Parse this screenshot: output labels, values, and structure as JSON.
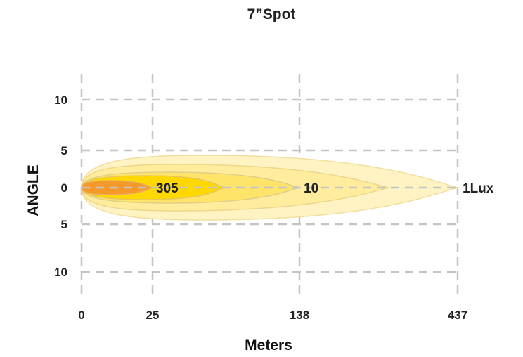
{
  "chart_data": {
    "type": "isolux",
    "title": "7”Spot",
    "xlabel": "Meters",
    "ylabel": "ANGLE",
    "x_ticks": [
      "0",
      "25",
      "138",
      "437"
    ],
    "y_ticks": [
      {
        "label": "10",
        "value": 10
      },
      {
        "label": "5",
        "value": 5
      },
      {
        "label": "0",
        "value": 0
      },
      {
        "label": "5",
        "value": -5
      },
      {
        "label": "10",
        "value": -10
      }
    ],
    "grid": true,
    "contours": [
      {
        "label": "1Lux",
        "reach_m": 437,
        "color": "#fff3c4",
        "stroke": "#f2dfa0"
      },
      {
        "label": "",
        "reach_m": 262,
        "color": "#ffec9c",
        "stroke": "#ecd78a"
      },
      {
        "label": "10",
        "reach_m": 138,
        "color": "#ffe46a",
        "stroke": "#e0cf8a"
      },
      {
        "label": "",
        "reach_m": 60,
        "color": "#ffd800",
        "stroke": "#e6c860"
      },
      {
        "label": "305",
        "reach_m": 25,
        "color": "#f59a2a",
        "stroke": "#e8b060"
      }
    ]
  }
}
